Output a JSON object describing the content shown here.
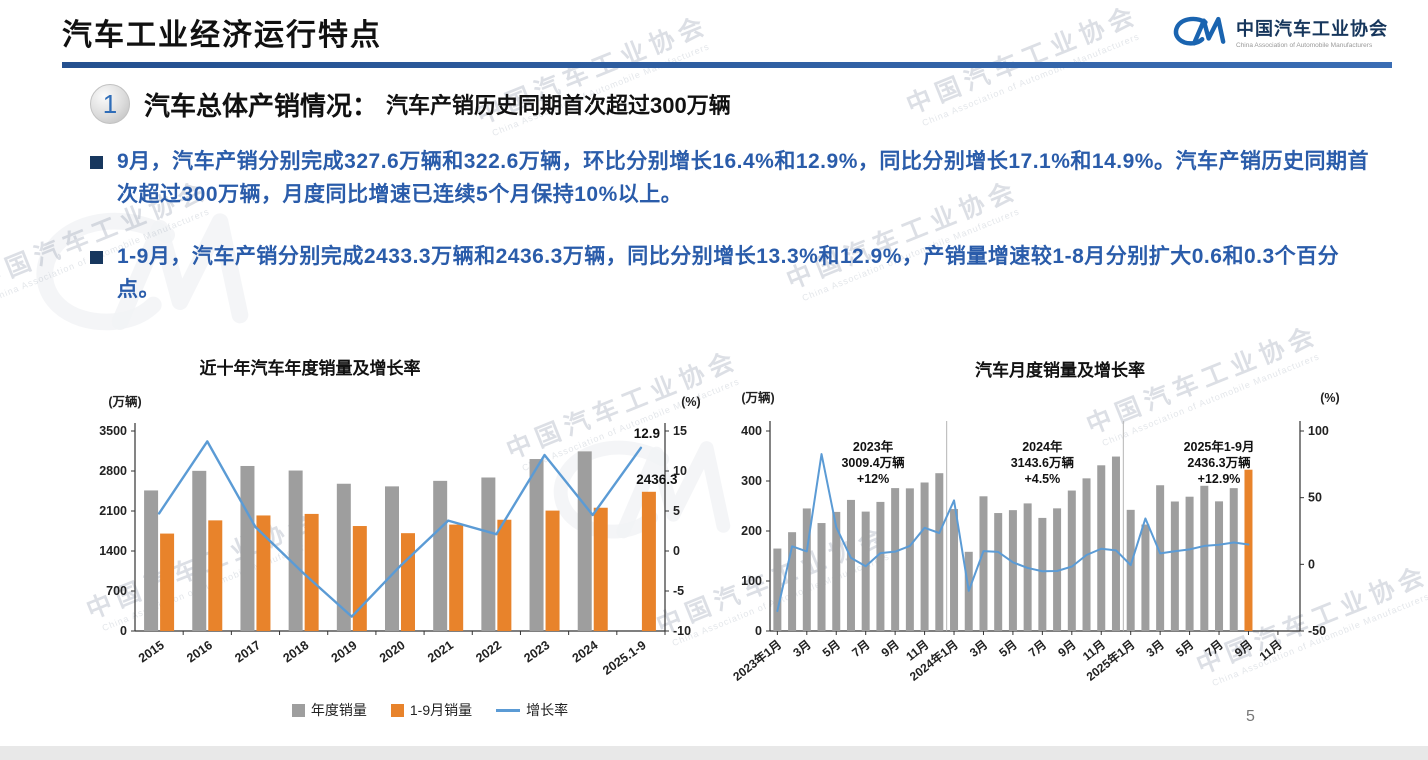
{
  "header": {
    "title": "汽车工业经济运行特点",
    "logo_text": "中国汽车工业协会",
    "logo_subtext": "China Association of Automobile Manufacturers"
  },
  "section": {
    "number": "1",
    "heading": "汽车总体产销情况：",
    "subheading": "汽车产销历史同期首次超过300万辆"
  },
  "bullets": [
    "9月，汽车产销分别完成327.6万辆和322.6万辆，环比分别增长16.4%和12.9%，同比分别增长17.1%和14.9%。汽车产销历史同期首次超过300万辆，月度同比增速已连续5个月保持10%以上。",
    "1-9月，汽车产销分别完成2433.3万辆和2436.3万辆，同比分别增长13.3%和12.9%，产销量增速较1-8月分别扩大0.6和0.3个百分点。"
  ],
  "watermark": {
    "text": "中国汽车工业协会",
    "subtext": "China Association of Automobile Manufacturers"
  },
  "page_number": "5",
  "colors": {
    "accent_line": "#2b5ca8",
    "bullet_text": "#2a5caa",
    "bar_gray": "#9e9e9e",
    "bar_orange": "#e8832b",
    "line_blue": "#5b9bd5"
  },
  "chart_data": [
    {
      "type": "bar",
      "title": "近十年汽车年度销量及增长率",
      "unit_left": "(万辆)",
      "unit_right": "(%)",
      "categories": [
        "2015",
        "2016",
        "2017",
        "2018",
        "2019",
        "2020",
        "2021",
        "2022",
        "2023",
        "2024",
        "2025.1-9"
      ],
      "series": [
        {
          "name": "年度销量",
          "kind": "bar",
          "color": "#9e9e9e",
          "values": [
            2459.8,
            2802.8,
            2887.9,
            2808.1,
            2576.9,
            2531.1,
            2627.5,
            2686.4,
            3009.4,
            3143.6,
            null
          ]
        },
        {
          "name": "1-9月销量",
          "kind": "bar",
          "color": "#e8832b",
          "values": [
            1705,
            1936,
            2022,
            2049,
            1837,
            1712,
            1862,
            1947,
            2107,
            2157,
            2436.3
          ]
        },
        {
          "name": "增长率",
          "kind": "line",
          "axis": "right",
          "color": "#5b9bd5",
          "values": [
            4.7,
            13.7,
            3.0,
            -2.8,
            -8.2,
            -1.9,
            3.8,
            2.1,
            12.0,
            4.5,
            12.9
          ]
        }
      ],
      "ylim_left": [
        0,
        3500
      ],
      "yticks_left": [
        0,
        700,
        1400,
        2100,
        2800,
        3500
      ],
      "ylim_right": [
        -10,
        15
      ],
      "yticks_right": [
        -10,
        -5,
        0,
        5,
        10,
        15
      ],
      "annotations": [
        {
          "text": "12.9",
          "target": "last-line-point"
        },
        {
          "text": "2436.3",
          "target": "last-orange-bar"
        }
      ],
      "legend_position": "bottom",
      "grid": false
    },
    {
      "type": "bar",
      "title": "汽车月度销量及增长率",
      "unit_left": "(万辆)",
      "unit_right": "(%)",
      "x_tick_labels": [
        "2023年1月",
        "3月",
        "5月",
        "7月",
        "9月",
        "11月",
        "2024年1月",
        "3月",
        "5月",
        "7月",
        "9月",
        "11月",
        "2025年1月",
        "3月",
        "5月",
        "7月",
        "9月",
        "11月"
      ],
      "bar_name": "月度销量",
      "bar_color": "#9e9e9e",
      "highlight_last_color": "#e8832b",
      "bar_values": [
        164.9,
        197.6,
        245.1,
        215.9,
        238.2,
        262.2,
        238.8,
        258.2,
        285.8,
        285.3,
        297.0,
        315.6,
        243.9,
        158.4,
        269.4,
        235.9,
        241.7,
        255.2,
        226.2,
        245.3,
        280.9,
        305.3,
        331.4,
        348.9,
        242.3,
        212.9,
        291.5,
        259.0,
        268.6,
        290.4,
        259.3,
        285.7,
        322.6
      ],
      "line_name": "增长率",
      "line_color": "#5b9bd5",
      "line_values": [
        -35.0,
        13.5,
        9.7,
        82.7,
        27.9,
        4.8,
        -1.4,
        8.4,
        9.5,
        13.8,
        27.4,
        23.5,
        47.9,
        -19.9,
        9.9,
        9.3,
        1.5,
        -2.7,
        -5.2,
        -5.0,
        -1.7,
        7.0,
        11.7,
        10.5,
        -0.6,
        34.4,
        8.2,
        9.8,
        11.2,
        13.8,
        14.7,
        16.4,
        14.9
      ],
      "total_slots": 36,
      "ylim_left": [
        0,
        400
      ],
      "yticks_left": [
        0,
        100,
        200,
        300,
        400
      ],
      "ylim_right": [
        -50,
        100
      ],
      "yticks_right": [
        -50,
        0,
        50,
        100
      ],
      "annotations": [
        {
          "lines": [
            "2023年",
            "3009.4万辆",
            "+12%"
          ]
        },
        {
          "lines": [
            "2024年",
            "3143.6万辆",
            "+4.5%"
          ]
        },
        {
          "lines": [
            "2025年1-9月",
            "2436.3万辆",
            "+12.9%"
          ]
        }
      ],
      "separators_after": [
        12,
        24
      ],
      "grid": false
    }
  ]
}
